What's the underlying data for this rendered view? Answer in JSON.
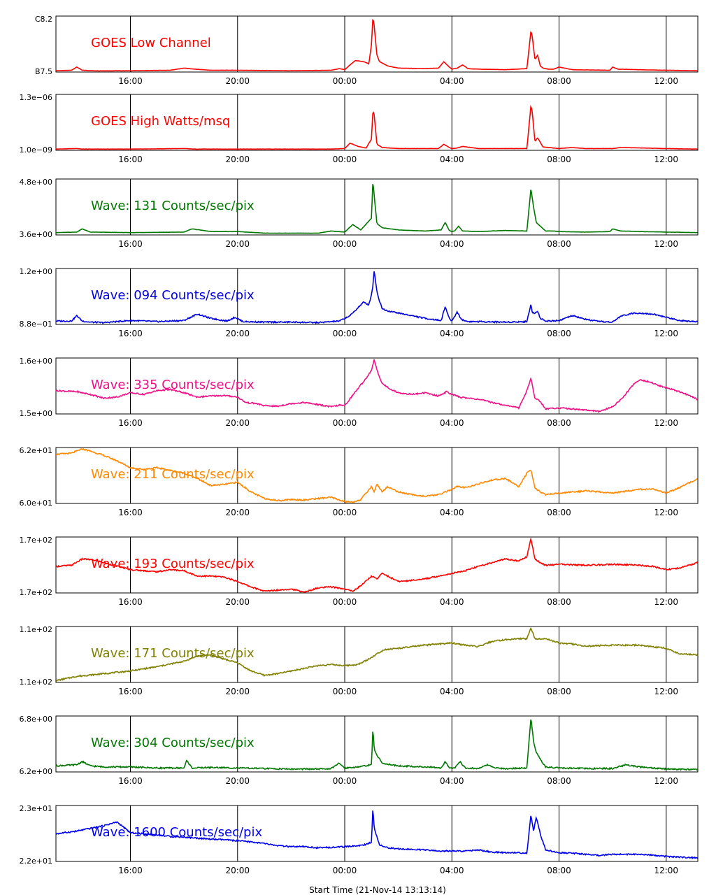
{
  "footer": {
    "start_time": "Start Time (21-Nov-14 13:13:14)"
  },
  "x_axis": {
    "ticks": [
      "16:00",
      "20:00",
      "00:00",
      "04:00",
      "08:00",
      "12:00"
    ],
    "range_hours": [
      13.22,
      37.18
    ],
    "tick_hours": [
      16,
      20,
      24,
      28,
      32,
      36
    ]
  },
  "chart_data": [
    {
      "type": "line",
      "title": "GOES Low Channel",
      "color": "#ff0000",
      "ylim_labels": [
        "C8.2",
        "B7.5"
      ],
      "x": [
        13.22,
        13.8,
        14.0,
        14.2,
        14.6,
        16.0,
        17.5,
        18.0,
        18.4,
        19.0,
        20.0,
        22.0,
        23.5,
        23.8,
        24.0,
        24.2,
        24.4,
        24.7,
        24.9,
        25.0,
        25.05,
        25.1,
        25.2,
        25.3,
        25.6,
        26.0,
        27.0,
        27.5,
        27.7,
        27.9,
        28.0,
        28.2,
        28.4,
        28.6,
        29.0,
        30.0,
        30.8,
        30.95,
        31.0,
        31.1,
        31.2,
        31.3,
        31.4,
        31.6,
        31.8,
        32.0,
        32.5,
        33.9,
        34.0,
        34.2,
        35.0,
        36.0,
        37.18
      ],
      "y": [
        0.01,
        0.02,
        0.08,
        0.02,
        0.01,
        0.01,
        0.02,
        0.06,
        0.04,
        0.02,
        0.02,
        0.01,
        0.02,
        0.05,
        0.03,
        0.12,
        0.2,
        0.18,
        0.14,
        0.5,
        1.0,
        0.85,
        0.3,
        0.18,
        0.1,
        0.06,
        0.05,
        0.06,
        0.18,
        0.08,
        0.04,
        0.06,
        0.12,
        0.05,
        0.04,
        0.03,
        0.05,
        0.75,
        0.65,
        0.22,
        0.3,
        0.1,
        0.06,
        0.04,
        0.04,
        0.08,
        0.03,
        0.02,
        0.08,
        0.04,
        0.03,
        0.02,
        0.01
      ]
    },
    {
      "type": "line",
      "title": "GOES High Watts/msq",
      "color": "#ff0000",
      "ylim_labels": [
        "1.3e−06",
        "1.0e−09"
      ],
      "x": [
        13.22,
        14.0,
        14.2,
        16.0,
        18.0,
        18.4,
        20.0,
        23.5,
        24.0,
        24.2,
        24.5,
        24.8,
        25.0,
        25.05,
        25.1,
        25.2,
        25.4,
        26.0,
        27.5,
        27.7,
        27.9,
        28.0,
        28.2,
        28.4,
        29.0,
        30.8,
        30.95,
        31.0,
        31.1,
        31.2,
        31.4,
        32.0,
        32.5,
        33.0,
        34.0,
        34.3,
        36.0,
        37.18
      ],
      "y": [
        0.01,
        0.02,
        0.01,
        0.01,
        0.02,
        0.01,
        0.01,
        0.01,
        0.02,
        0.12,
        0.06,
        0.03,
        0.2,
        0.72,
        0.65,
        0.1,
        0.04,
        0.02,
        0.02,
        0.1,
        0.04,
        0.02,
        0.03,
        0.06,
        0.02,
        0.02,
        0.82,
        0.7,
        0.15,
        0.22,
        0.05,
        0.02,
        0.04,
        0.02,
        0.02,
        0.04,
        0.02,
        0.01
      ]
    },
    {
      "type": "line",
      "title": "Wave: 131 Counts/sec/pix",
      "color": "#007700",
      "ylim_labels": [
        "4.8e+00",
        "3.6e+00"
      ],
      "x": [
        13.22,
        14.0,
        14.2,
        14.5,
        16.0,
        18.0,
        18.3,
        19.0,
        20.0,
        21.0,
        23.0,
        23.5,
        24.0,
        24.3,
        24.6,
        25.0,
        25.05,
        25.1,
        25.2,
        25.4,
        26.0,
        27.0,
        27.6,
        27.75,
        27.9,
        28.0,
        28.1,
        28.25,
        28.4,
        29.0,
        30.0,
        30.8,
        30.95,
        31.05,
        31.15,
        31.3,
        31.5,
        31.8,
        32.0,
        33.0,
        33.9,
        34.0,
        34.3,
        35.0,
        36.0,
        37.18
      ],
      "y": [
        0.03,
        0.04,
        0.1,
        0.04,
        0.03,
        0.04,
        0.1,
        0.05,
        0.05,
        0.02,
        0.02,
        0.06,
        0.04,
        0.18,
        0.08,
        0.3,
        1.0,
        0.72,
        0.2,
        0.12,
        0.08,
        0.06,
        0.08,
        0.22,
        0.07,
        0.05,
        0.06,
        0.15,
        0.06,
        0.05,
        0.07,
        0.06,
        0.85,
        0.5,
        0.22,
        0.15,
        0.06,
        0.06,
        0.05,
        0.04,
        0.05,
        0.1,
        0.06,
        0.05,
        0.04,
        0.03
      ]
    },
    {
      "type": "line",
      "title": "Wave: 094 Counts/sec/pix",
      "color": "#0000dd",
      "ylim_labels": [
        "1.2e+00",
        "8.8e−01"
      ],
      "x": [
        13.22,
        13.8,
        14.0,
        14.2,
        14.5,
        15.0,
        16.0,
        16.5,
        17.0,
        18.0,
        18.5,
        19.0,
        19.6,
        19.9,
        20.2,
        21.0,
        22.0,
        23.0,
        23.8,
        24.2,
        24.5,
        24.7,
        24.9,
        25.0,
        25.05,
        25.1,
        25.2,
        25.3,
        25.4,
        25.6,
        26.0,
        26.6,
        27.0,
        27.6,
        27.75,
        27.9,
        28.0,
        28.2,
        28.35,
        28.6,
        29.0,
        30.0,
        30.8,
        30.95,
        31.0,
        31.1,
        31.2,
        31.3,
        31.5,
        32.0,
        32.5,
        33.0,
        33.5,
        34.0,
        34.3,
        34.7,
        35.0,
        35.5,
        36.0,
        36.5,
        37.18
      ],
      "y": [
        0.05,
        0.05,
        0.15,
        0.05,
        0.03,
        0.02,
        0.06,
        0.05,
        0.04,
        0.06,
        0.18,
        0.1,
        0.05,
        0.12,
        0.04,
        0.03,
        0.03,
        0.02,
        0.05,
        0.15,
        0.3,
        0.4,
        0.35,
        0.55,
        0.7,
        1.0,
        0.6,
        0.42,
        0.28,
        0.24,
        0.2,
        0.14,
        0.1,
        0.06,
        0.32,
        0.1,
        0.05,
        0.22,
        0.08,
        0.04,
        0.04,
        0.03,
        0.04,
        0.37,
        0.2,
        0.2,
        0.24,
        0.1,
        0.05,
        0.06,
        0.15,
        0.08,
        0.04,
        0.03,
        0.14,
        0.19,
        0.2,
        0.18,
        0.12,
        0.06,
        0.04
      ]
    },
    {
      "type": "line",
      "title": "Wave: 335 Counts/sec/pix",
      "color": "#ee1188",
      "ylim_labels": [
        "1.6e+00",
        "1.5e+00"
      ],
      "x": [
        13.22,
        14.0,
        14.5,
        15.0,
        15.5,
        16.0,
        16.5,
        17.0,
        17.5,
        18.0,
        18.5,
        19.0,
        19.5,
        20.0,
        20.3,
        20.7,
        21.0,
        21.5,
        22.0,
        22.5,
        23.0,
        23.5,
        23.8,
        24.0,
        24.4,
        24.8,
        25.0,
        25.1,
        25.2,
        25.4,
        25.7,
        26.0,
        26.5,
        27.0,
        27.5,
        27.8,
        28.0,
        28.3,
        28.6,
        29.0,
        29.5,
        30.0,
        30.5,
        30.8,
        30.95,
        31.1,
        31.3,
        31.5,
        32.0,
        32.5,
        33.0,
        33.5,
        34.0,
        34.4,
        34.8,
        35.0,
        35.4,
        35.8,
        36.2,
        36.6,
        37.0,
        37.18
      ],
      "y": [
        0.42,
        0.4,
        0.35,
        0.28,
        0.3,
        0.38,
        0.35,
        0.42,
        0.44,
        0.38,
        0.3,
        0.32,
        0.33,
        0.3,
        0.2,
        0.18,
        0.14,
        0.13,
        0.18,
        0.2,
        0.16,
        0.12,
        0.15,
        0.14,
        0.4,
        0.65,
        0.8,
        1.0,
        0.8,
        0.55,
        0.45,
        0.38,
        0.35,
        0.38,
        0.32,
        0.4,
        0.35,
        0.3,
        0.28,
        0.26,
        0.2,
        0.15,
        0.1,
        0.42,
        0.65,
        0.28,
        0.22,
        0.08,
        0.1,
        0.08,
        0.06,
        0.03,
        0.12,
        0.3,
        0.55,
        0.62,
        0.58,
        0.5,
        0.45,
        0.38,
        0.3,
        0.25
      ]
    },
    {
      "type": "line",
      "title": "Wave: 211 Counts/sec/pix",
      "color": "#ff8800",
      "ylim_labels": [
        "6.2e+01",
        "6.0e+01"
      ],
      "x": [
        13.22,
        13.8,
        14.2,
        14.5,
        15.0,
        15.5,
        16.0,
        16.5,
        17.0,
        17.5,
        18.0,
        18.5,
        19.0,
        19.5,
        20.0,
        20.5,
        21.0,
        21.5,
        22.0,
        22.5,
        23.0,
        23.5,
        24.0,
        24.3,
        24.6,
        25.0,
        25.1,
        25.2,
        25.4,
        25.6,
        26.0,
        26.5,
        27.0,
        27.5,
        28.0,
        28.2,
        28.5,
        29.0,
        29.5,
        30.0,
        30.5,
        30.8,
        30.95,
        31.1,
        31.3,
        31.5,
        32.0,
        33.0,
        34.0,
        35.0,
        35.5,
        36.0,
        36.5,
        37.18
      ],
      "y": [
        0.9,
        0.92,
        1.0,
        0.96,
        0.88,
        0.78,
        0.65,
        0.62,
        0.65,
        0.6,
        0.55,
        0.45,
        0.32,
        0.34,
        0.38,
        0.2,
        0.08,
        0.04,
        0.06,
        0.05,
        0.08,
        0.1,
        0.02,
        0.01,
        0.06,
        0.3,
        0.2,
        0.35,
        0.2,
        0.3,
        0.2,
        0.15,
        0.12,
        0.15,
        0.25,
        0.3,
        0.28,
        0.35,
        0.42,
        0.45,
        0.3,
        0.55,
        0.6,
        0.28,
        0.2,
        0.15,
        0.18,
        0.22,
        0.18,
        0.25,
        0.25,
        0.18,
        0.28,
        0.45
      ]
    },
    {
      "type": "line",
      "title": "Wave: 193 Counts/sec/pix",
      "color": "#ff0000",
      "ylim_labels": [
        "1.7e+02",
        "1.7e+02"
      ],
      "x": [
        13.22,
        13.8,
        14.2,
        14.6,
        15.0,
        16.0,
        16.5,
        17.0,
        17.5,
        18.0,
        18.5,
        19.0,
        19.5,
        20.0,
        20.5,
        21.0,
        21.5,
        22.0,
        22.5,
        23.0,
        23.5,
        24.0,
        24.3,
        24.6,
        25.0,
        25.2,
        25.4,
        25.6,
        25.8,
        26.0,
        26.5,
        27.0,
        27.5,
        28.0,
        28.5,
        29.0,
        29.5,
        30.0,
        30.5,
        30.8,
        30.95,
        31.1,
        31.3,
        31.5,
        32.0,
        33.0,
        34.0,
        35.0,
        35.5,
        36.0,
        36.5,
        37.18
      ],
      "y": [
        0.48,
        0.5,
        0.62,
        0.6,
        0.55,
        0.42,
        0.4,
        0.38,
        0.42,
        0.4,
        0.3,
        0.3,
        0.28,
        0.2,
        0.1,
        0.02,
        0.04,
        0.06,
        0.0,
        0.08,
        0.1,
        0.06,
        0.02,
        0.12,
        0.3,
        0.25,
        0.35,
        0.3,
        0.25,
        0.2,
        0.22,
        0.25,
        0.3,
        0.35,
        0.4,
        0.48,
        0.55,
        0.62,
        0.58,
        0.66,
        1.0,
        0.62,
        0.55,
        0.5,
        0.52,
        0.5,
        0.52,
        0.5,
        0.48,
        0.42,
        0.45,
        0.55
      ]
    },
    {
      "type": "line",
      "title": "Wave: 171 Counts/sec/pix",
      "color": "#808000",
      "ylim_labels": [
        "1.1e+02",
        "1.1e+02"
      ],
      "x": [
        13.22,
        14.0,
        15.0,
        16.0,
        17.0,
        18.0,
        18.5,
        19.0,
        19.5,
        20.0,
        20.5,
        21.0,
        21.5,
        22.0,
        22.5,
        23.0,
        23.5,
        24.0,
        24.5,
        25.0,
        25.3,
        25.5,
        26.0,
        26.5,
        27.0,
        27.5,
        28.0,
        28.5,
        29.0,
        29.5,
        30.0,
        30.5,
        30.8,
        30.95,
        31.1,
        31.5,
        32.0,
        32.5,
        33.0,
        34.0,
        35.0,
        36.0,
        36.5,
        37.18
      ],
      "y": [
        0.02,
        0.1,
        0.15,
        0.2,
        0.28,
        0.38,
        0.48,
        0.5,
        0.42,
        0.35,
        0.2,
        0.12,
        0.15,
        0.2,
        0.25,
        0.3,
        0.32,
        0.3,
        0.32,
        0.45,
        0.55,
        0.6,
        0.62,
        0.65,
        0.68,
        0.7,
        0.72,
        0.68,
        0.65,
        0.75,
        0.78,
        0.8,
        0.8,
        1.0,
        0.8,
        0.8,
        0.72,
        0.7,
        0.66,
        0.68,
        0.68,
        0.62,
        0.52,
        0.5
      ]
    },
    {
      "type": "line",
      "title": "Wave: 304 Counts/sec/pix",
      "color": "#007700",
      "ylim_labels": [
        "6.8e+00",
        "6.2e+00"
      ],
      "x": [
        13.22,
        14.0,
        14.2,
        14.5,
        15.0,
        16.0,
        17.0,
        18.0,
        18.1,
        18.3,
        19.0,
        20.0,
        21.0,
        22.0,
        23.0,
        23.5,
        23.8,
        24.0,
        24.5,
        25.0,
        25.05,
        25.1,
        25.2,
        25.4,
        26.0,
        27.0,
        27.6,
        27.75,
        27.9,
        28.0,
        28.1,
        28.3,
        28.5,
        29.0,
        29.3,
        29.6,
        30.0,
        30.8,
        30.95,
        31.05,
        31.15,
        31.3,
        31.5,
        32.0,
        33.0,
        34.0,
        34.5,
        35.0,
        36.0,
        37.18
      ],
      "y": [
        0.1,
        0.12,
        0.18,
        0.1,
        0.08,
        0.08,
        0.06,
        0.06,
        0.2,
        0.06,
        0.07,
        0.06,
        0.05,
        0.04,
        0.04,
        0.05,
        0.15,
        0.06,
        0.08,
        0.12,
        0.8,
        0.42,
        0.3,
        0.15,
        0.1,
        0.08,
        0.06,
        0.18,
        0.07,
        0.06,
        0.06,
        0.18,
        0.06,
        0.05,
        0.12,
        0.06,
        0.05,
        0.06,
        1.0,
        0.55,
        0.35,
        0.22,
        0.08,
        0.06,
        0.05,
        0.05,
        0.12,
        0.08,
        0.04,
        0.03
      ]
    },
    {
      "type": "line",
      "title": "Wave: 1600 Counts/sec/pix",
      "color": "#0000ee",
      "ylim_labels": [
        "2.3e+01",
        "2.2e+01"
      ],
      "x": [
        13.22,
        14.0,
        14.5,
        15.0,
        15.5,
        15.8,
        16.0,
        16.5,
        17.0,
        17.5,
        18.0,
        18.5,
        19.0,
        19.5,
        20.0,
        20.5,
        21.0,
        21.5,
        22.0,
        22.5,
        23.0,
        23.5,
        24.0,
        24.5,
        24.8,
        25.0,
        25.05,
        25.1,
        25.3,
        25.5,
        26.0,
        27.0,
        27.5,
        28.0,
        28.5,
        29.0,
        29.5,
        30.0,
        30.5,
        30.8,
        30.95,
        31.05,
        31.15,
        31.3,
        31.5,
        32.0,
        32.5,
        33.0,
        33.5,
        34.0,
        35.0,
        36.0,
        37.18
      ],
      "y": [
        0.5,
        0.55,
        0.6,
        0.65,
        0.72,
        0.6,
        0.52,
        0.5,
        0.48,
        0.45,
        0.44,
        0.42,
        0.4,
        0.39,
        0.37,
        0.35,
        0.32,
        0.28,
        0.26,
        0.26,
        0.24,
        0.25,
        0.26,
        0.28,
        0.3,
        0.35,
        1.0,
        0.6,
        0.3,
        0.25,
        0.22,
        0.2,
        0.18,
        0.18,
        0.18,
        0.2,
        0.16,
        0.15,
        0.15,
        0.14,
        0.85,
        0.55,
        0.82,
        0.5,
        0.2,
        0.15,
        0.14,
        0.12,
        0.1,
        0.12,
        0.12,
        0.08,
        0.05
      ]
    }
  ]
}
